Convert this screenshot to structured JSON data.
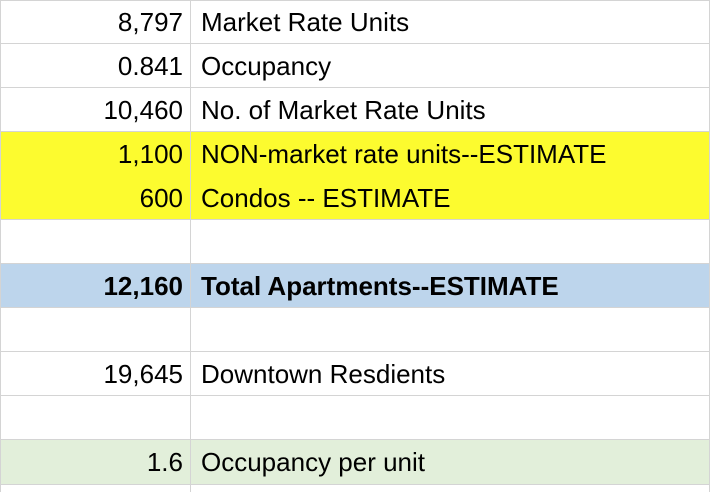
{
  "colors": {
    "highlight_yellow": "#fcfb2f",
    "highlight_blue": "#bdd5ec",
    "highlight_green": "#e2efda",
    "gridline": "#d4d4d4"
  },
  "rows": [
    {
      "value": "8,797",
      "label": "Market Rate Units",
      "fill": "",
      "bold": false
    },
    {
      "value": "0.841",
      "label": "Occupancy",
      "fill": "",
      "bold": false
    },
    {
      "value": "10,460",
      "label": "No. of Market Rate Units",
      "fill": "",
      "bold": false
    },
    {
      "value": "1,100",
      "label": "NON-market rate units--ESTIMATE",
      "fill": "yellow",
      "bold": false
    },
    {
      "value": "600",
      "label": "Condos -- ESTIMATE",
      "fill": "yellow",
      "bold": false
    },
    {
      "value": "",
      "label": "",
      "fill": "",
      "bold": false
    },
    {
      "value": "12,160",
      "label": "Total Apartments--ESTIMATE",
      "fill": "blue",
      "bold": true
    },
    {
      "value": "",
      "label": "",
      "fill": "",
      "bold": false
    },
    {
      "value": "19,645",
      "label": "Downtown Resdients",
      "fill": "",
      "bold": false
    },
    {
      "value": "",
      "label": "",
      "fill": "",
      "bold": false
    },
    {
      "value": "1.6",
      "label": "Occupancy per unit",
      "fill": "green",
      "bold": false
    }
  ]
}
